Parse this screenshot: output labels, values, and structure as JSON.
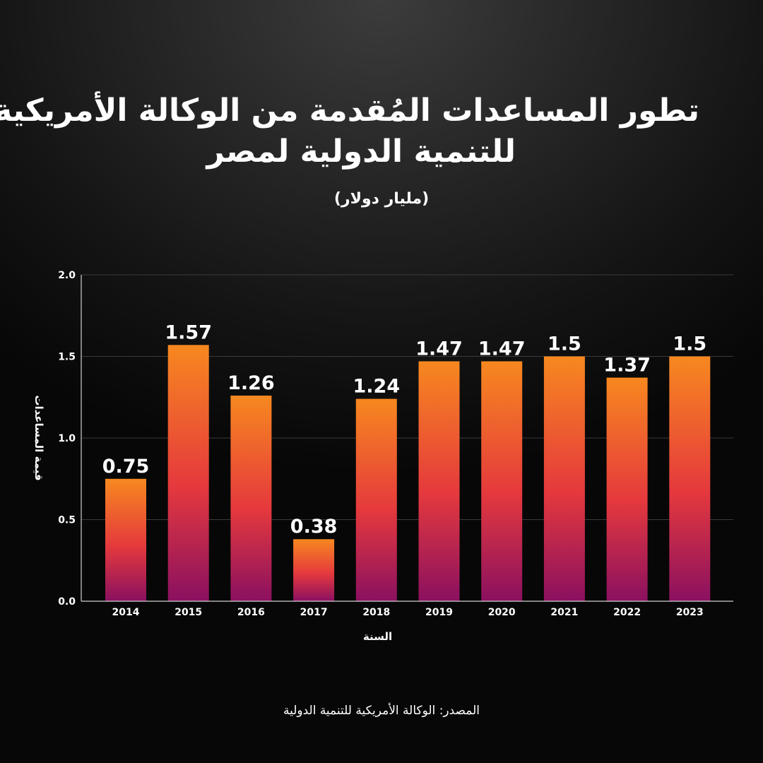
{
  "title_lines": [
    "تطور المساعدات المُقدمة من الوكالة الأمريكية",
    "للتنمية الدولية لمصر"
  ],
  "subtitle": "(مليار دولار)",
  "source": "المصدر: الوكالة الأمريكية للتنمية الدولية",
  "colors": {
    "bar_top": "#f7881f",
    "bar_mid": "#e5393d",
    "bar_bottom": "#8a1060",
    "gridline": "#3a3a3a",
    "axis": "#cfcfcf",
    "text": "#ffffff"
  },
  "chart_data": {
    "type": "bar",
    "categories": [
      "2014",
      "2015",
      "2016",
      "2017",
      "2018",
      "2019",
      "2020",
      "2021",
      "2022",
      "2023"
    ],
    "values": [
      0.75,
      1.57,
      1.26,
      0.38,
      1.24,
      1.47,
      1.47,
      1.5,
      1.37,
      1.5
    ],
    "data_labels": [
      "0.75",
      "1.57",
      "1.26",
      "0.38",
      "1.24",
      "1.47",
      "1.47",
      "1.5",
      "1.37",
      "1.5"
    ],
    "xlabel": "السنة",
    "ylabel": "قيمة المساعدات",
    "ylim": [
      0,
      2.0
    ],
    "yticks": [
      "0.0",
      "0.5",
      "1.0",
      "1.5",
      "2.0"
    ],
    "grid": true,
    "legend": "none"
  }
}
